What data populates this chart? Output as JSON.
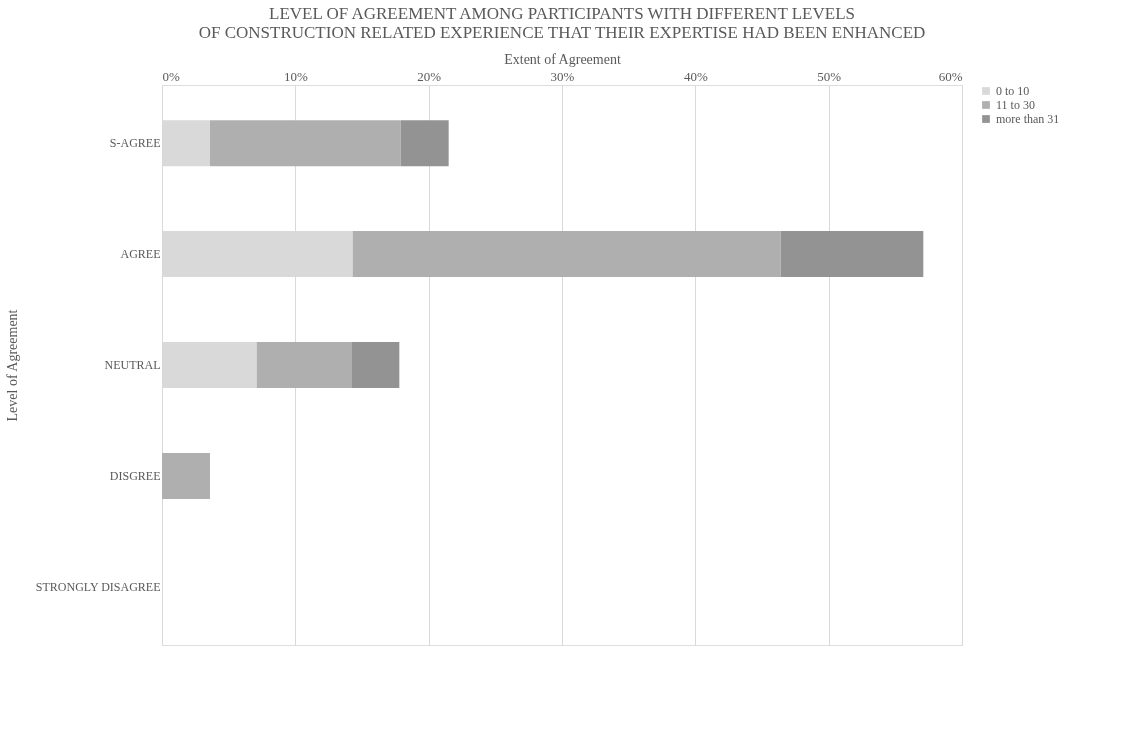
{
  "chart_data": {
    "type": "bar",
    "orientation": "horizontal",
    "stacked": true,
    "title": "LEVEL OF AGREEMENT AMONG PARTICIPANTS  WITH DIFFERENT LEVELS OF CONSTRUCTION RELATED EXPERIENCE THAT THEIR EXPERTISE HAD BEEN ENHANCED",
    "xlabel": "Extent of Agreement",
    "ylabel": "Level of Agreement",
    "categories": [
      "S-AGREE",
      "AGREE",
      "NEUTRAL",
      "DISGREE",
      "STRONGLY DISAGREE"
    ],
    "series": [
      {
        "name": "0 to 10",
        "color": "#d9d9d9",
        "values": [
          3.6,
          14.3,
          7.1,
          0,
          0
        ]
      },
      {
        "name": "11 to 30",
        "color": "#afafaf",
        "values": [
          14.3,
          32.1,
          7.1,
          3.6,
          0
        ]
      },
      {
        "name": "more than 31",
        "color": "#939393",
        "values": [
          3.6,
          10.7,
          3.6,
          0,
          0
        ]
      }
    ],
    "xlim": [
      0,
      60
    ],
    "xticks": [
      {
        "value": 0,
        "label": "0%"
      },
      {
        "value": 10,
        "label": "10%"
      },
      {
        "value": 20,
        "label": "20%"
      },
      {
        "value": 30,
        "label": "30%"
      },
      {
        "value": 40,
        "label": "40%"
      },
      {
        "value": 50,
        "label": "50%"
      },
      {
        "value": 60,
        "label": "60%"
      }
    ],
    "grid": "x",
    "legend": "right"
  }
}
